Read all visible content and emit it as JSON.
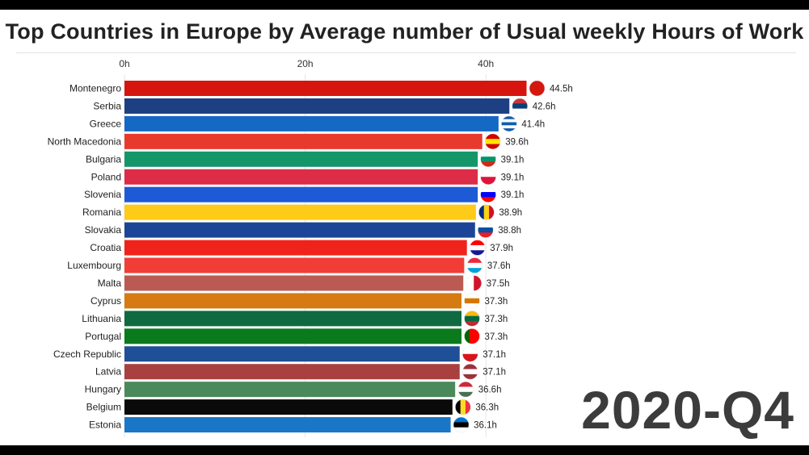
{
  "chart_data": {
    "type": "bar",
    "orientation": "horizontal",
    "title": "Top Countries in Europe by Average number of Usual weekly Hours of Work",
    "period": "2020-Q4",
    "xlim": [
      0,
      45
    ],
    "x_ticks": [
      0,
      20,
      40
    ],
    "x_tick_labels": [
      "0h",
      "20h",
      "40h"
    ],
    "value_suffix": "h",
    "grid": true,
    "categories": [
      "Montenegro",
      "Serbia",
      "Greece",
      "North Macedonia",
      "Bulgaria",
      "Poland",
      "Slovenia",
      "Romania",
      "Slovakia",
      "Croatia",
      "Luxembourg",
      "Malta",
      "Cyprus",
      "Lithuania",
      "Portugal",
      "Czech Republic",
      "Latvia",
      "Hungary",
      "Belgium",
      "Estonia"
    ],
    "values": [
      44.5,
      42.6,
      41.4,
      39.6,
      39.1,
      39.1,
      39.1,
      38.9,
      38.8,
      37.9,
      37.6,
      37.5,
      37.3,
      37.3,
      37.3,
      37.1,
      37.1,
      36.6,
      36.3,
      36.1
    ],
    "value_labels": [
      "44.5h",
      "42.6h",
      "41.4h",
      "39.6h",
      "39.1h",
      "39.1h",
      "39.1h",
      "38.9h",
      "38.8h",
      "37.9h",
      "37.6h",
      "37.5h",
      "37.3h",
      "37.3h",
      "37.3h",
      "37.1h",
      "37.1h",
      "36.6h",
      "36.3h",
      "36.1h"
    ],
    "colors": [
      "#d7150f",
      "#1e3f82",
      "#1668c5",
      "#e8392d",
      "#159669",
      "#dc2c47",
      "#1d5bd6",
      "#fecb18",
      "#1d4597",
      "#f0231c",
      "#f13d36",
      "#bb5a52",
      "#d57b12",
      "#0f6a41",
      "#0b7a1c",
      "#1f4f96",
      "#a8403f",
      "#4a8a5a",
      "#0a0a0a",
      "#1a76c7"
    ],
    "flags": [
      {
        "country": "Montenegro",
        "stripes": [
          "#d3190f"
        ]
      },
      {
        "country": "Serbia",
        "stripes": [
          "#c6363c",
          "#0c4076",
          "#ffffff"
        ]
      },
      {
        "country": "Greece",
        "stripes": [
          "#0d5eaf",
          "#ffffff",
          "#0d5eaf",
          "#ffffff",
          "#0d5eaf"
        ]
      },
      {
        "country": "North Macedonia",
        "stripes": [
          "#d20000",
          "#ffe600",
          "#d20000"
        ]
      },
      {
        "country": "Bulgaria",
        "stripes": [
          "#ffffff",
          "#00966e",
          "#d62612"
        ]
      },
      {
        "country": "Poland",
        "stripes": [
          "#ffffff",
          "#dc143c"
        ]
      },
      {
        "country": "Slovenia",
        "stripes": [
          "#ffffff",
          "#0000ff",
          "#ff0000"
        ]
      },
      {
        "country": "Romania",
        "stripes_vertical": [
          "#002b7f",
          "#fcd116",
          "#ce1126"
        ]
      },
      {
        "country": "Slovakia",
        "stripes": [
          "#ffffff",
          "#0b4ea2",
          "#ee1c25"
        ]
      },
      {
        "country": "Croatia",
        "stripes": [
          "#ff0000",
          "#ffffff",
          "#171796"
        ]
      },
      {
        "country": "Luxembourg",
        "stripes": [
          "#ed2939",
          "#ffffff",
          "#00a1de"
        ]
      },
      {
        "country": "Malta",
        "stripes_vertical": [
          "#ffffff",
          "#cf142b"
        ]
      },
      {
        "country": "Cyprus",
        "stripes": [
          "#ffffff",
          "#d57800",
          "#ffffff"
        ]
      },
      {
        "country": "Lithuania",
        "stripes": [
          "#fdb913",
          "#006a44",
          "#c1272d"
        ]
      },
      {
        "country": "Portugal",
        "stripes_vertical": [
          "#006600",
          "#ff0000",
          "#ff0000"
        ]
      },
      {
        "country": "Czech Republic",
        "stripes": [
          "#ffffff",
          "#d7141a"
        ]
      },
      {
        "country": "Latvia",
        "stripes": [
          "#9e3039",
          "#ffffff",
          "#9e3039"
        ]
      },
      {
        "country": "Hungary",
        "stripes": [
          "#ce2939",
          "#ffffff",
          "#477050"
        ]
      },
      {
        "country": "Belgium",
        "stripes_vertical": [
          "#000000",
          "#fdda24",
          "#ef3340"
        ]
      },
      {
        "country": "Estonia",
        "stripes": [
          "#0072ce",
          "#000000",
          "#ffffff"
        ]
      }
    ]
  }
}
